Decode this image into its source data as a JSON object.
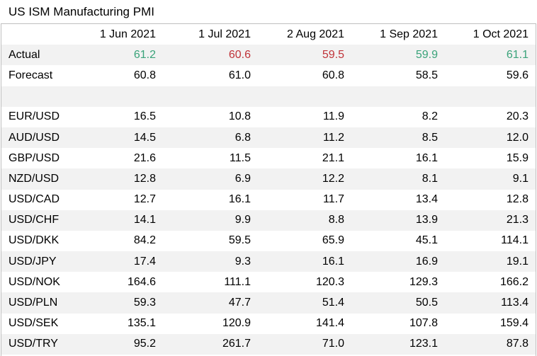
{
  "title": "US ISM Manufacturing PMI",
  "columns": [
    "1 Jun 2021",
    "1 Jul 2021",
    "2 Aug 2021",
    "1 Sep 2021",
    "1 Oct 2021"
  ],
  "actual": {
    "label": "Actual",
    "values": [
      "61.2",
      "60.6",
      "59.5",
      "59.9",
      "61.1"
    ],
    "directions": [
      "up",
      "down",
      "down",
      "up",
      "up"
    ]
  },
  "forecast": {
    "label": "Forecast",
    "values": [
      "60.8",
      "61.0",
      "60.8",
      "58.5",
      "59.6"
    ]
  },
  "pairs": [
    {
      "label": "EUR/USD",
      "values": [
        "16.5",
        "10.8",
        "11.9",
        "8.2",
        "20.3"
      ]
    },
    {
      "label": "AUD/USD",
      "values": [
        "14.5",
        "6.8",
        "11.2",
        "8.5",
        "12.0"
      ]
    },
    {
      "label": "GBP/USD",
      "values": [
        "21.6",
        "11.5",
        "21.1",
        "16.1",
        "15.9"
      ]
    },
    {
      "label": "NZD/USD",
      "values": [
        "12.8",
        "6.9",
        "12.2",
        "8.1",
        "9.1"
      ]
    },
    {
      "label": "USD/CAD",
      "values": [
        "12.7",
        "16.1",
        "11.7",
        "13.4",
        "12.8"
      ]
    },
    {
      "label": "USD/CHF",
      "values": [
        "14.1",
        "9.9",
        "8.8",
        "13.9",
        "21.3"
      ]
    },
    {
      "label": "USD/DKK",
      "values": [
        "84.2",
        "59.5",
        "65.9",
        "45.1",
        "114.1"
      ]
    },
    {
      "label": "USD/JPY",
      "values": [
        "17.4",
        "9.3",
        "16.1",
        "16.9",
        "19.1"
      ]
    },
    {
      "label": "USD/NOK",
      "values": [
        "164.6",
        "111.1",
        "120.3",
        "129.3",
        "166.2"
      ]
    },
    {
      "label": "USD/PLN",
      "values": [
        "59.3",
        "47.7",
        "51.4",
        "50.5",
        "113.4"
      ]
    },
    {
      "label": "USD/SEK",
      "values": [
        "135.1",
        "120.9",
        "141.4",
        "107.8",
        "159.4"
      ]
    },
    {
      "label": "USD/TRY",
      "values": [
        "95.2",
        "261.7",
        "71.0",
        "123.1",
        "87.8"
      ]
    }
  ],
  "colors": {
    "up": "#3aa37a",
    "down": "#c0343a",
    "shade": "#f2f2f2"
  }
}
